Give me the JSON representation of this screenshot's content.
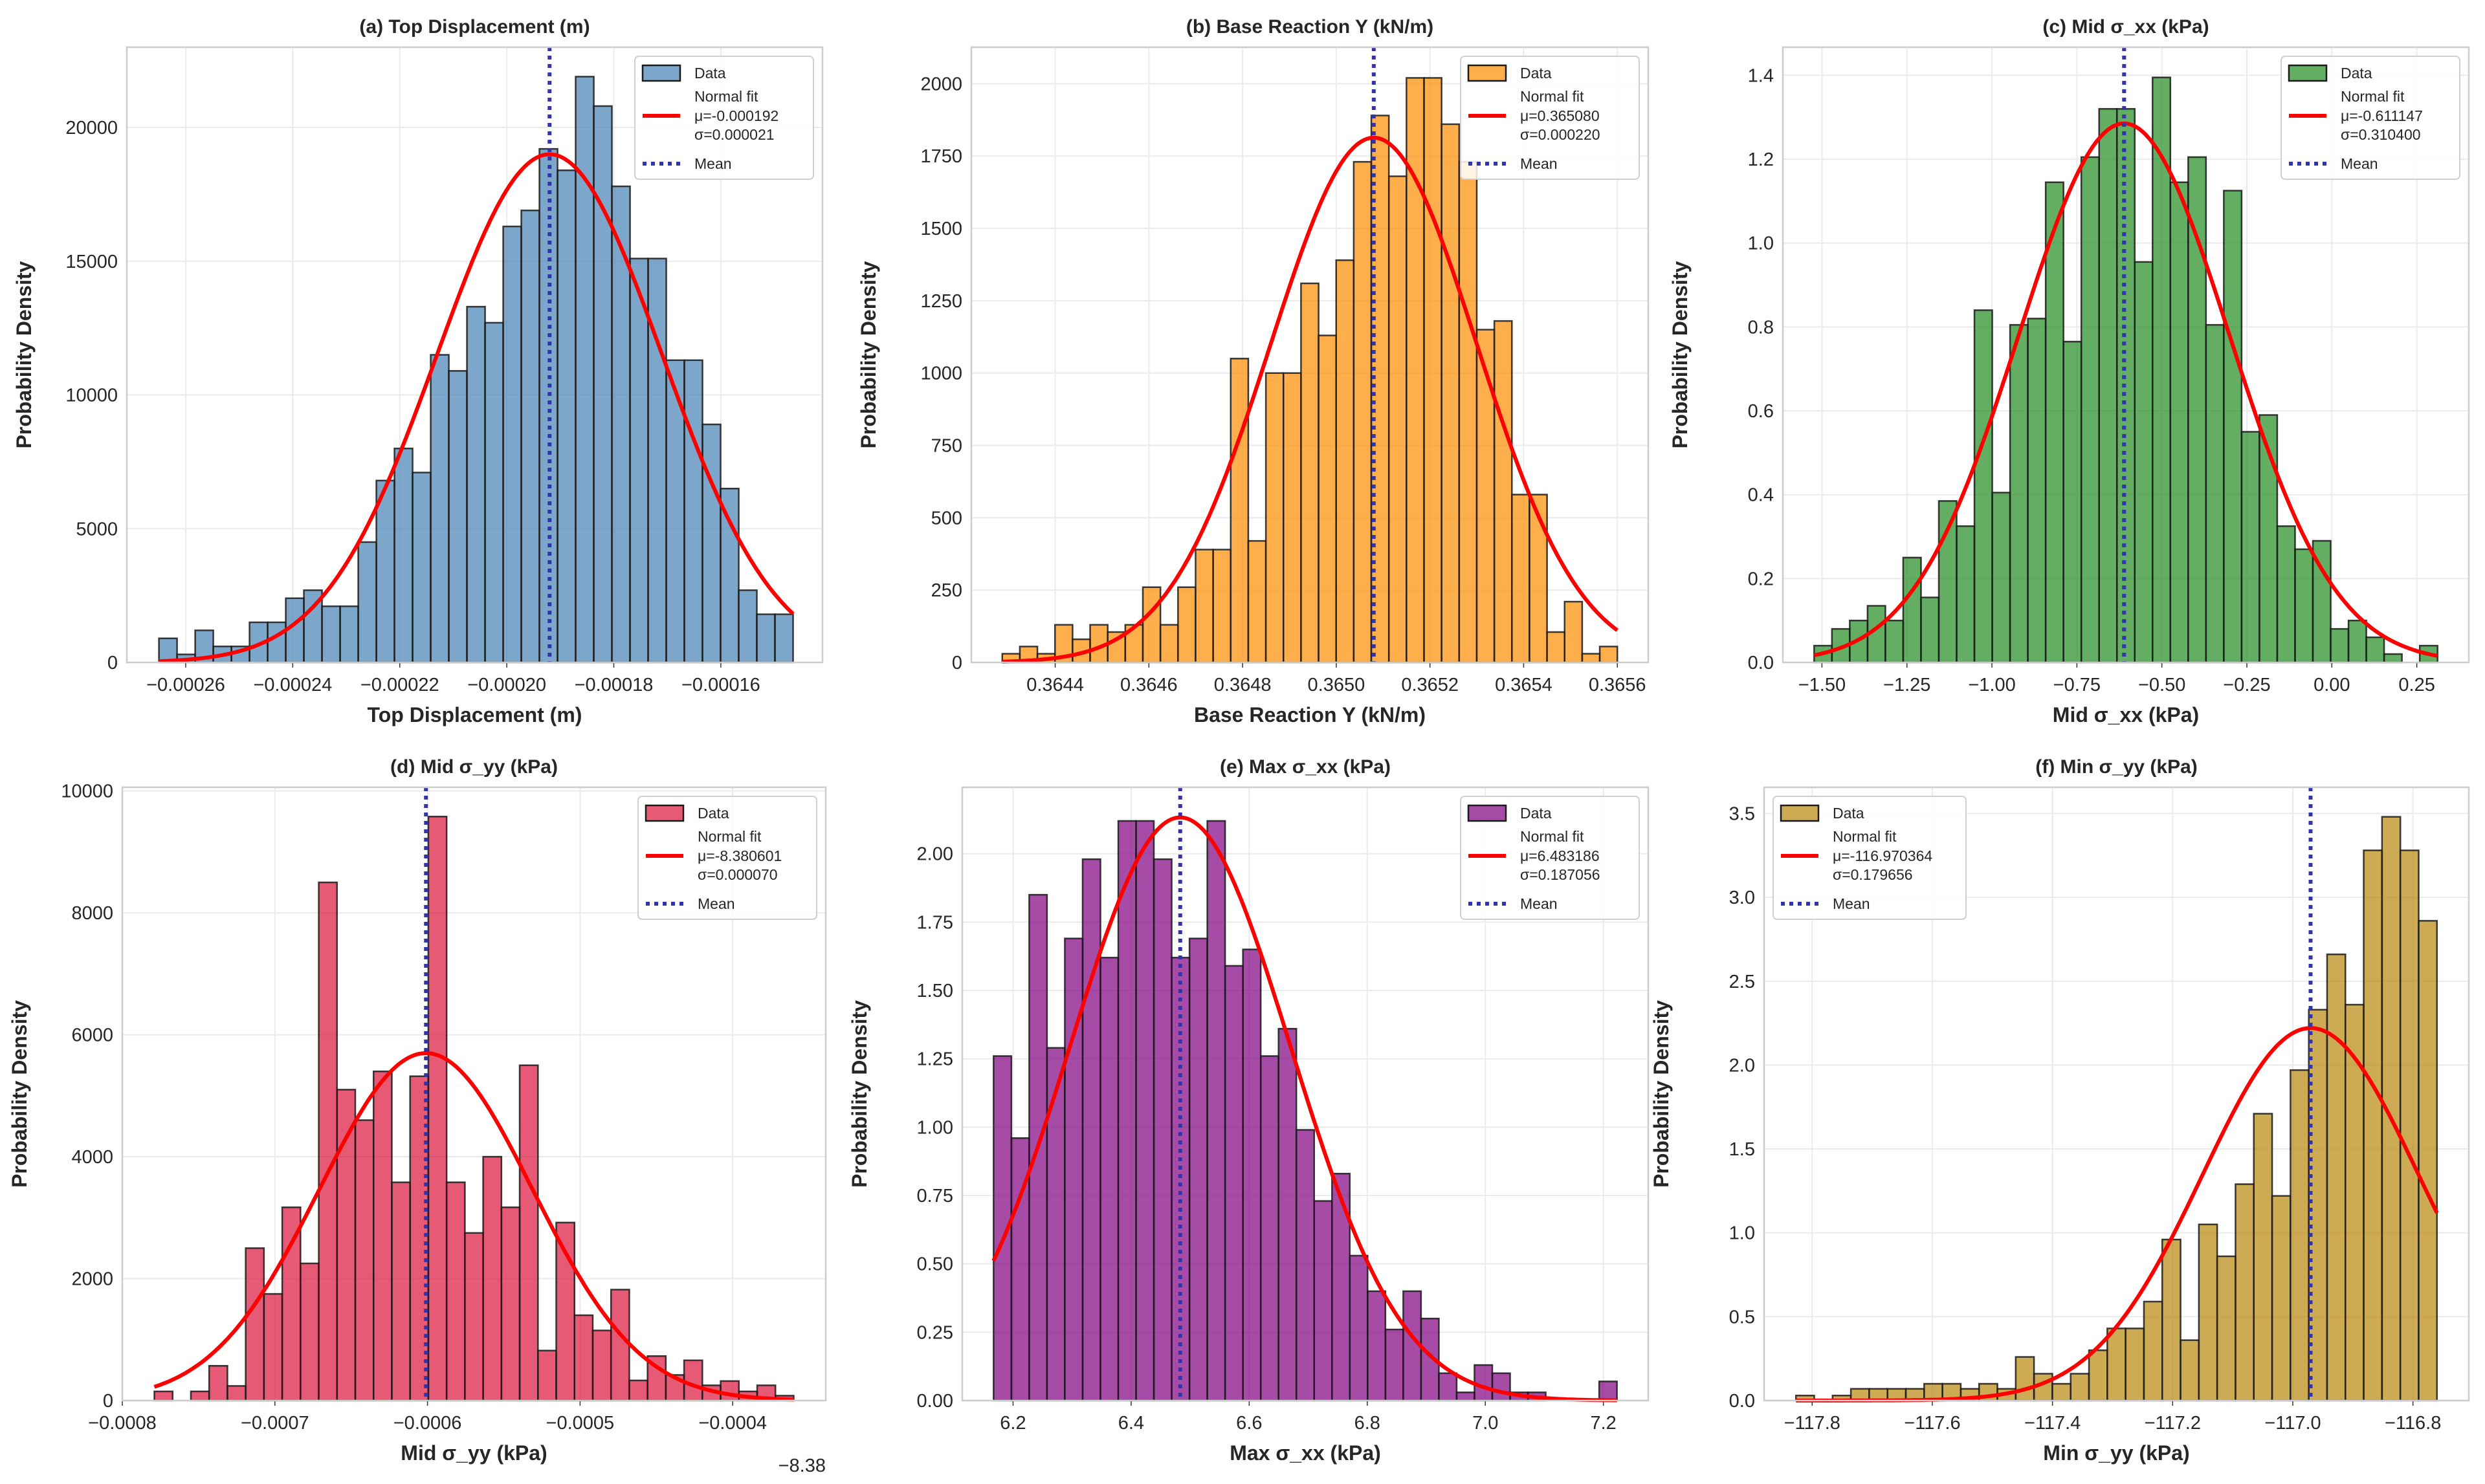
{
  "chart_data": [
    {
      "type": "bar",
      "title": "(a) Top Displacement (m)",
      "xlabel": "Top Displacement (m)",
      "ylabel": "Probability Density",
      "color": "#4682b4",
      "bin_range": [
        -0.000265,
        -0.0001465
      ],
      "values": [
        900,
        300,
        1200,
        600,
        600,
        1500,
        1500,
        2400,
        2700,
        2100,
        2100,
        4500,
        6800,
        8000,
        7100,
        11500,
        10900,
        13300,
        12700,
        16300,
        16900,
        19200,
        18400,
        21900,
        20800,
        17800,
        15100,
        15100,
        11300,
        11300,
        8900,
        6500,
        2700,
        1800,
        1800
      ],
      "fit": {
        "mu": -0.000192,
        "sigma": 2.1e-05
      },
      "xlim": [
        -0.000271,
        -0.000141
      ],
      "ylim": [
        0,
        23000
      ],
      "xticks": [
        -0.00026,
        -0.00024,
        -0.00022,
        -0.0002,
        -0.00018,
        -0.00016
      ],
      "xtick_labels": [
        "−0.00026",
        "−0.00024",
        "−0.00022",
        "−0.00020",
        "−0.00018",
        "−0.00016"
      ],
      "yticks": [
        0,
        5000,
        10000,
        15000,
        20000
      ],
      "ytick_labels": [
        "0",
        "5000",
        "10000",
        "15000",
        "20000"
      ],
      "grid": true,
      "legend_placement": "top-right",
      "legend": {
        "data": "Data",
        "fit": "Normal fit",
        "mu": "μ=-0.000192",
        "sigma": "σ=0.000021",
        "mean": "Mean"
      }
    },
    {
      "type": "bar",
      "title": "(b) Base Reaction Y (kN/m)",
      "xlabel": "Base Reaction Y (kN/m)",
      "ylabel": "Probability Density",
      "color": "#ff8c00",
      "bin_range": [
        0.364287,
        0.3656
      ],
      "values": [
        30,
        55,
        30,
        130,
        80,
        130,
        105,
        130,
        260,
        130,
        260,
        390,
        390,
        1050,
        420,
        1000,
        1000,
        1310,
        1130,
        1390,
        1730,
        1890,
        1680,
        2020,
        2020,
        1860,
        1730,
        1150,
        1180,
        580,
        580,
        105,
        210,
        30,
        55
      ],
      "fit": {
        "mu": 0.36508,
        "sigma": 0.00022
      },
      "xlim": [
        0.364221,
        0.365666
      ],
      "ylim": [
        0,
        2126
      ],
      "xticks": [
        0.3644,
        0.3646,
        0.3648,
        0.365,
        0.3652,
        0.3654,
        0.3656
      ],
      "xtick_labels": [
        "0.3644",
        "0.3646",
        "0.3648",
        "0.3650",
        "0.3652",
        "0.3654",
        "0.3656"
      ],
      "yticks": [
        0,
        250,
        500,
        750,
        1000,
        1250,
        1500,
        1750,
        2000
      ],
      "ytick_labels": [
        "0",
        "250",
        "500",
        "750",
        "1000",
        "1250",
        "1500",
        "1750",
        "2000"
      ],
      "grid": true,
      "legend_placement": "top-right",
      "legend": {
        "data": "Data",
        "fit": "Normal fit",
        "mu": "μ=0.365080",
        "sigma": "σ=0.000220",
        "mean": "Mean"
      }
    },
    {
      "type": "bar",
      "title": "(c) Mid σ_xx (kPa)",
      "xlabel": "Mid σ_xx (kPa)",
      "ylabel": "Probability Density",
      "color": "#228b22",
      "bin_range": [
        -1.523,
        0.311
      ],
      "values": [
        0.04,
        0.08,
        0.1,
        0.135,
        0.1,
        0.25,
        0.155,
        0.385,
        0.325,
        0.84,
        0.405,
        0.805,
        0.82,
        1.145,
        0.765,
        1.205,
        1.32,
        1.32,
        0.955,
        1.395,
        1.145,
        1.205,
        0.805,
        1.125,
        0.55,
        0.59,
        0.325,
        0.27,
        0.29,
        0.08,
        0.1,
        0.06,
        0.02,
        0,
        0.04
      ],
      "fit": {
        "mu": -0.611147,
        "sigma": 0.3104
      },
      "xlim": [
        -1.615,
        0.403
      ],
      "ylim": [
        0,
        1.467
      ],
      "xticks": [
        -1.5,
        -1.25,
        -1.0,
        -0.75,
        -0.5,
        -0.25,
        0,
        0.25
      ],
      "xtick_labels": [
        "−1.50",
        "−1.25",
        "−1.00",
        "−0.75",
        "−0.50",
        "−0.25",
        "0.00",
        "0.25"
      ],
      "yticks": [
        0,
        0.2,
        0.4,
        0.6,
        0.8,
        1.0,
        1.2,
        1.4
      ],
      "ytick_labels": [
        "0.0",
        "0.2",
        "0.4",
        "0.6",
        "0.8",
        "1.0",
        "1.2",
        "1.4"
      ],
      "grid": true,
      "legend_placement": "top-right",
      "legend": {
        "data": "Data",
        "fit": "Normal fit",
        "mu": "μ=-0.611147",
        "sigma": "σ=0.310400",
        "mean": "Mean"
      }
    },
    {
      "type": "bar",
      "title": "(d) Mid σ_yy (kPa)",
      "xlabel": "Mid σ_yy (kPa)",
      "ylabel": "Probability Density",
      "color": "#dc143c",
      "x_offset": -8.38,
      "x_offset_label": "−8.38",
      "bin_range": [
        -0.000779,
        -0.00036
      ],
      "values": [
        150,
        0,
        150,
        570,
        240,
        2500,
        1750,
        3170,
        2250,
        8500,
        5100,
        4600,
        5400,
        3580,
        5320,
        9580,
        3580,
        2750,
        4000,
        3170,
        5500,
        820,
        2920,
        1400,
        1150,
        1820,
        330,
        730,
        420,
        660,
        250,
        320,
        150,
        250,
        80
      ],
      "fit": {
        "mu": -8.380601,
        "sigma": 7e-05
      },
      "xlim": [
        -0.0008,
        -0.000339
      ],
      "ylim": [
        0,
        10060
      ],
      "xticks": [
        -0.0008,
        -0.0007,
        -0.0006,
        -0.0005,
        -0.0004
      ],
      "xtick_labels": [
        "−0.0008",
        "−0.0007",
        "−0.0006",
        "−0.0005",
        "−0.0004"
      ],
      "yticks": [
        0,
        2000,
        4000,
        6000,
        8000,
        10000
      ],
      "ytick_labels": [
        "0",
        "2000",
        "4000",
        "6000",
        "8000",
        "10000"
      ],
      "grid": true,
      "legend_placement": "top-right",
      "legend": {
        "data": "Data",
        "fit": "Normal fit",
        "mu": "μ=-8.380601",
        "sigma": "σ=0.000070",
        "mean": "Mean"
      }
    },
    {
      "type": "bar",
      "title": "(e) Max σ_xx (kPa)",
      "xlabel": "Max σ_xx (kPa)",
      "ylabel": "Probability Density",
      "color": "#800080",
      "bin_range": [
        6.167,
        7.223
      ],
      "values": [
        1.26,
        0.96,
        1.85,
        1.29,
        1.69,
        1.98,
        1.62,
        2.12,
        2.12,
        1.98,
        1.62,
        1.69,
        2.12,
        1.59,
        1.65,
        1.26,
        1.36,
        0.99,
        0.73,
        0.83,
        0.53,
        0.4,
        0.26,
        0.4,
        0.3,
        0.1,
        0.03,
        0.13,
        0.1,
        0.03,
        0.03,
        0,
        0,
        0,
        0.07
      ],
      "fit": {
        "mu": 6.483186,
        "sigma": 0.187056
      },
      "xlim": [
        6.114,
        7.276
      ],
      "ylim": [
        0,
        2.243
      ],
      "xticks": [
        6.2,
        6.4,
        6.6,
        6.8,
        7.0,
        7.2
      ],
      "xtick_labels": [
        "6.2",
        "6.4",
        "6.6",
        "6.8",
        "7.0",
        "7.2"
      ],
      "yticks": [
        0,
        0.25,
        0.5,
        0.75,
        1.0,
        1.25,
        1.5,
        1.75,
        2.0
      ],
      "ytick_labels": [
        "0.00",
        "0.25",
        "0.50",
        "0.75",
        "1.00",
        "1.25",
        "1.50",
        "1.75",
        "2.00"
      ],
      "grid": true,
      "legend_placement": "top-right",
      "legend": {
        "data": "Data",
        "fit": "Normal fit",
        "mu": "μ=6.483186",
        "sigma": "σ=0.187056",
        "mean": "Mean"
      }
    },
    {
      "type": "bar",
      "title": "(f) Min σ_yy (kPa)",
      "xlabel": "Min σ_yy (kPa)",
      "ylabel": "Probability Density",
      "color": "#b8860b",
      "bin_range": [
        -117.827,
        -116.76
      ],
      "values": [
        0.03,
        0,
        0.03,
        0.07,
        0.07,
        0.07,
        0.07,
        0.1,
        0.1,
        0.07,
        0.1,
        0.07,
        0.26,
        0.16,
        0.1,
        0.16,
        0.3,
        0.43,
        0.43,
        0.59,
        0.96,
        0.36,
        1.05,
        0.86,
        1.29,
        1.71,
        1.22,
        1.97,
        2.33,
        2.66,
        2.36,
        3.28,
        3.48,
        3.28,
        2.86
      ],
      "fit": {
        "mu": -116.970364,
        "sigma": 0.179656
      },
      "xlim": [
        -117.88,
        -116.707
      ],
      "ylim": [
        0,
        3.656
      ],
      "xticks": [
        -117.8,
        -117.6,
        -117.4,
        -117.2,
        -117.0,
        -116.8
      ],
      "xtick_labels": [
        "−117.8",
        "−117.6",
        "−117.4",
        "−117.2",
        "−117.0",
        "−116.8"
      ],
      "yticks": [
        0,
        0.5,
        1.0,
        1.5,
        2.0,
        2.5,
        3.0,
        3.5
      ],
      "ytick_labels": [
        "0.0",
        "0.5",
        "1.0",
        "1.5",
        "2.0",
        "2.5",
        "3.0",
        "3.5"
      ],
      "grid": true,
      "legend_placement": "top-left",
      "legend": {
        "data": "Data",
        "fit": "Normal fit",
        "mu": "μ=-116.970364",
        "sigma": "σ=0.179656",
        "mean": "Mean"
      }
    }
  ],
  "colors": {
    "fit_line": "#ff0000",
    "mean_line": "#3333aa",
    "bar_edge": "#1a1a1a",
    "grid": "#ebebeb",
    "spine": "#cccccc"
  }
}
